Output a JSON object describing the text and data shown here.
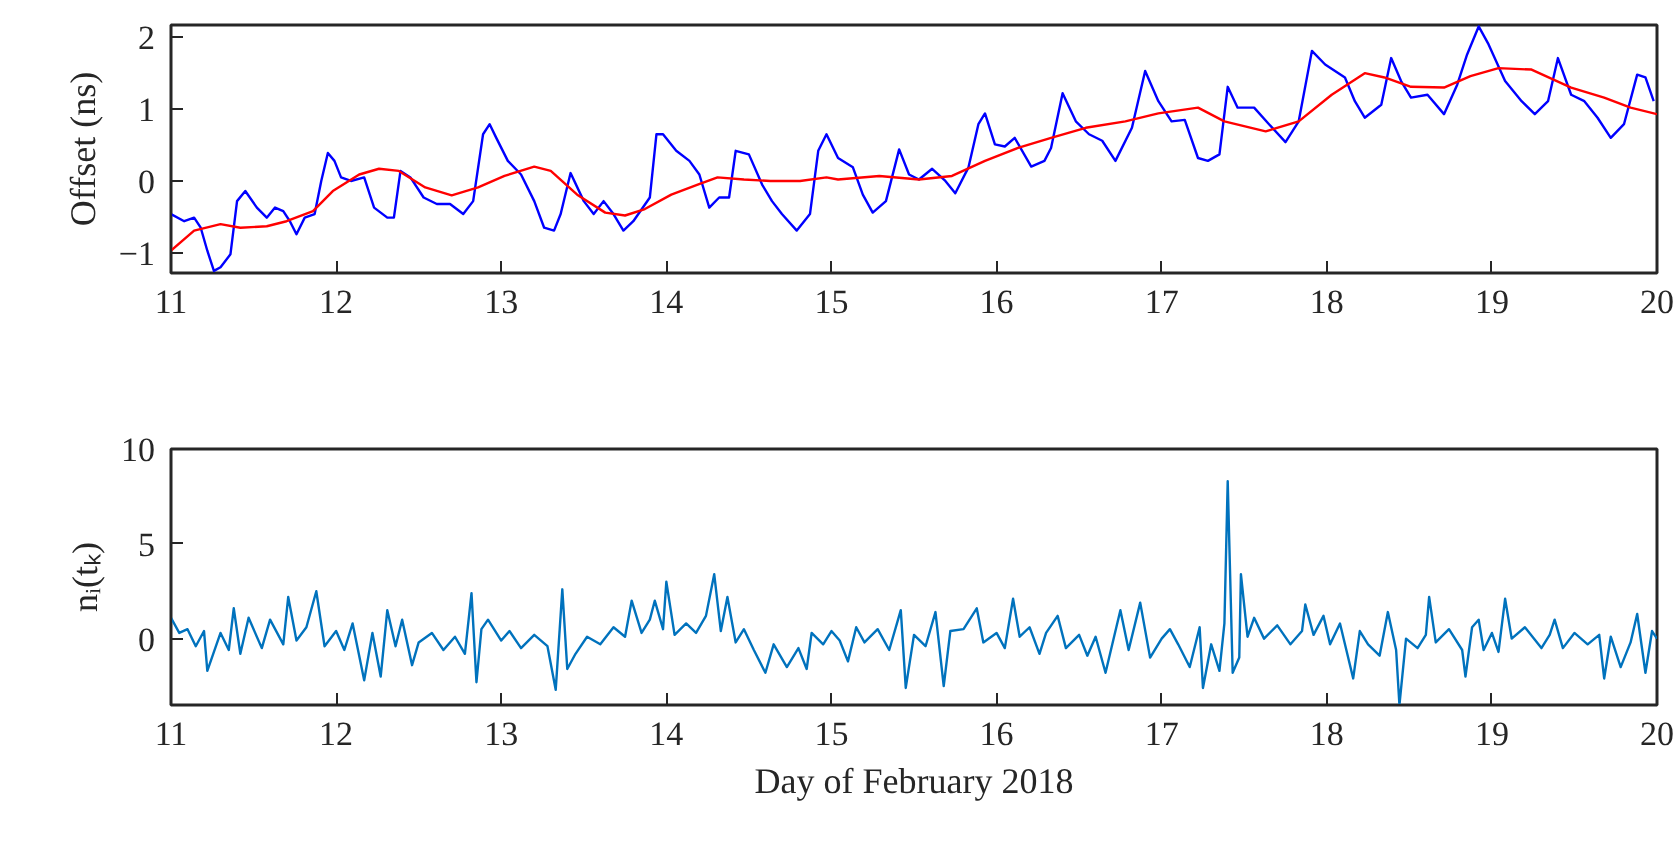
{
  "chart_data": [
    {
      "type": "line",
      "ylabel": "Offset (ns)",
      "xlim": [
        11,
        20
      ],
      "ylim": [
        -1.28,
        2.17
      ],
      "xticks": [
        11,
        12,
        13,
        14,
        15,
        16,
        17,
        18,
        19,
        20
      ],
      "yticks": [
        -1,
        0,
        1,
        2
      ],
      "grid": false,
      "line_style": "solid",
      "marker": "none",
      "series": [
        {
          "color": "#0000ff",
          "x": [
            11.0,
            11.08,
            11.14,
            11.18,
            11.22,
            11.26,
            11.3,
            11.36,
            11.4,
            11.45,
            11.52,
            11.58,
            11.63,
            11.68,
            11.72,
            11.76,
            11.81,
            11.87,
            11.91,
            11.95,
            11.99,
            12.03,
            12.09,
            12.17,
            12.23,
            12.31,
            12.35,
            12.39,
            12.45,
            12.53,
            12.61,
            12.69,
            12.77,
            12.83,
            12.89,
            12.93,
            12.97,
            13.04,
            13.12,
            13.2,
            13.26,
            13.32,
            13.36,
            13.42,
            13.5,
            13.56,
            13.62,
            13.68,
            13.74,
            13.8,
            13.9,
            13.94,
            13.98,
            14.06,
            14.14,
            14.2,
            14.26,
            14.32,
            14.38,
            14.42,
            14.5,
            14.58,
            14.64,
            14.7,
            14.79,
            14.87,
            14.92,
            14.97,
            15.04,
            15.13,
            15.19,
            15.25,
            15.33,
            15.41,
            15.47,
            15.53,
            15.61,
            15.69,
            15.75,
            15.83,
            15.89,
            15.93,
            15.99,
            16.05,
            16.11,
            16.21,
            16.29,
            16.33,
            16.4,
            16.48,
            16.56,
            16.64,
            16.72,
            16.82,
            16.9,
            16.98,
            17.06,
            17.14,
            17.22,
            17.28,
            17.35,
            17.4,
            17.46,
            17.56,
            17.65,
            17.75,
            17.83,
            17.91,
            17.99,
            18.11,
            18.17,
            18.23,
            18.33,
            18.39,
            18.45,
            18.51,
            18.61,
            18.71,
            18.79,
            18.85,
            18.92,
            18.98,
            19.08,
            19.18,
            19.26,
            19.34,
            19.4,
            19.48,
            19.56,
            19.64,
            19.72,
            19.8,
            19.88,
            19.93,
            19.98
          ],
          "values": [
            -0.46,
            -0.56,
            -0.51,
            -0.65,
            -0.97,
            -1.25,
            -1.2,
            -1.02,
            -0.28,
            -0.14,
            -0.37,
            -0.51,
            -0.37,
            -0.42,
            -0.56,
            -0.74,
            -0.51,
            -0.46,
            0.0,
            0.39,
            0.28,
            0.05,
            0.0,
            0.05,
            -0.37,
            -0.51,
            -0.51,
            0.14,
            0.05,
            -0.23,
            -0.32,
            -0.32,
            -0.46,
            -0.28,
            0.65,
            0.79,
            0.6,
            0.28,
            0.09,
            -0.28,
            -0.65,
            -0.69,
            -0.46,
            0.11,
            -0.28,
            -0.46,
            -0.28,
            -0.46,
            -0.69,
            -0.56,
            -0.23,
            0.65,
            0.65,
            0.42,
            0.28,
            0.09,
            -0.37,
            -0.23,
            -0.23,
            0.42,
            0.37,
            -0.05,
            -0.28,
            -0.46,
            -0.69,
            -0.46,
            0.42,
            0.65,
            0.32,
            0.19,
            -0.19,
            -0.44,
            -0.28,
            0.44,
            0.09,
            0.02,
            0.17,
            0.0,
            -0.17,
            0.19,
            0.79,
            0.94,
            0.51,
            0.48,
            0.6,
            0.2,
            0.28,
            0.46,
            1.22,
            0.83,
            0.65,
            0.56,
            0.28,
            0.74,
            1.53,
            1.11,
            0.83,
            0.85,
            0.32,
            0.28,
            0.37,
            1.31,
            1.02,
            1.02,
            0.79,
            0.54,
            0.83,
            1.81,
            1.62,
            1.44,
            1.11,
            0.88,
            1.06,
            1.71,
            1.39,
            1.16,
            1.2,
            0.93,
            1.34,
            1.76,
            2.15,
            1.9,
            1.39,
            1.11,
            0.93,
            1.11,
            1.71,
            1.2,
            1.11,
            0.88,
            0.6,
            0.79,
            1.48,
            1.44,
            1.11
          ]
        },
        {
          "color": "#ff0000",
          "x": [
            11.0,
            11.14,
            11.3,
            11.42,
            11.58,
            11.7,
            11.86,
            11.98,
            12.14,
            12.26,
            12.38,
            12.54,
            12.7,
            12.86,
            13.02,
            13.2,
            13.3,
            13.46,
            13.63,
            13.75,
            13.87,
            14.03,
            14.19,
            14.31,
            14.47,
            14.63,
            14.81,
            14.97,
            15.04,
            15.29,
            15.53,
            15.73,
            15.93,
            16.13,
            16.33,
            16.54,
            16.78,
            16.98,
            17.22,
            17.38,
            17.63,
            17.83,
            18.03,
            18.23,
            18.35,
            18.51,
            18.71,
            18.87,
            19.04,
            19.24,
            19.48,
            19.68,
            19.84,
            20.0
          ],
          "values": [
            -0.97,
            -0.69,
            -0.6,
            -0.65,
            -0.63,
            -0.56,
            -0.42,
            -0.14,
            0.09,
            0.17,
            0.14,
            -0.09,
            -0.2,
            -0.09,
            0.07,
            0.2,
            0.14,
            -0.19,
            -0.44,
            -0.48,
            -0.39,
            -0.19,
            -0.05,
            0.05,
            0.02,
            0.0,
            0.0,
            0.05,
            0.02,
            0.07,
            0.02,
            0.07,
            0.28,
            0.46,
            0.6,
            0.74,
            0.83,
            0.94,
            1.02,
            0.83,
            0.69,
            0.83,
            1.2,
            1.5,
            1.44,
            1.31,
            1.3,
            1.46,
            1.57,
            1.55,
            1.3,
            1.16,
            1.02,
            0.93
          ]
        }
      ]
    },
    {
      "type": "line",
      "xlabel": "Day of February 2018",
      "ylabel": "nᵢ(tₖ)",
      "xlim": [
        11,
        20
      ],
      "ylim": [
        -3.5,
        10
      ],
      "xticks": [
        11,
        12,
        13,
        14,
        15,
        16,
        17,
        18,
        19,
        20
      ],
      "yticks": [
        0,
        5,
        10
      ],
      "grid": false,
      "line_style": "solid",
      "marker": "none",
      "series": [
        {
          "color": "#0072bd",
          "x": [
            11.0,
            11.05,
            11.1,
            11.15,
            11.2,
            11.22,
            11.3,
            11.35,
            11.38,
            11.42,
            11.47,
            11.55,
            11.6,
            11.68,
            11.71,
            11.76,
            11.82,
            11.88,
            11.93,
            12.0,
            12.05,
            12.1,
            12.17,
            12.22,
            12.27,
            12.31,
            12.36,
            12.4,
            12.46,
            12.5,
            12.58,
            12.65,
            12.72,
            12.78,
            12.82,
            12.85,
            12.88,
            12.92,
            13.0,
            13.05,
            13.12,
            13.2,
            13.28,
            13.33,
            13.37,
            13.4,
            13.45,
            13.52,
            13.6,
            13.68,
            13.75,
            13.79,
            13.85,
            13.9,
            13.93,
            13.98,
            14.0,
            14.05,
            14.12,
            14.18,
            14.24,
            14.29,
            14.33,
            14.37,
            14.42,
            14.47,
            14.53,
            14.6,
            14.65,
            14.73,
            14.8,
            14.85,
            14.88,
            14.95,
            15.0,
            15.05,
            15.1,
            15.15,
            15.2,
            15.28,
            15.35,
            15.42,
            15.45,
            15.5,
            15.57,
            15.63,
            15.68,
            15.72,
            15.8,
            15.88,
            15.92,
            16.0,
            16.05,
            16.1,
            16.14,
            16.2,
            16.26,
            16.3,
            16.37,
            16.42,
            16.5,
            16.55,
            16.6,
            16.66,
            16.72,
            16.75,
            16.8,
            16.87,
            16.93,
            17.0,
            17.05,
            17.1,
            17.17,
            17.23,
            17.25,
            17.3,
            17.35,
            17.38,
            17.4,
            17.43,
            17.47,
            17.48,
            17.52,
            17.56,
            17.62,
            17.7,
            17.78,
            17.85,
            17.87,
            17.92,
            17.98,
            18.02,
            18.08,
            18.16,
            18.2,
            18.25,
            18.32,
            18.37,
            18.42,
            18.44,
            18.48,
            18.55,
            18.6,
            18.62,
            18.66,
            18.74,
            18.82,
            18.84,
            18.88,
            18.92,
            18.95,
            19.0,
            19.04,
            19.08,
            19.12,
            19.2,
            19.3,
            19.35,
            19.38,
            19.43,
            19.5,
            19.58,
            19.65,
            19.68,
            19.72,
            19.78,
            19.84,
            19.88,
            19.93,
            19.97,
            20.0
          ],
          "values": [
            1.1,
            0.3,
            0.5,
            -0.4,
            0.4,
            -1.7,
            0.3,
            -0.6,
            1.6,
            -0.8,
            1.1,
            -0.5,
            1.0,
            -0.3,
            2.2,
            -0.1,
            0.6,
            2.5,
            -0.4,
            0.4,
            -0.6,
            0.8,
            -2.2,
            0.3,
            -2.0,
            1.5,
            -0.4,
            1.0,
            -1.4,
            -0.2,
            0.3,
            -0.6,
            0.1,
            -0.8,
            2.4,
            -2.3,
            0.5,
            1.0,
            -0.1,
            0.4,
            -0.5,
            0.2,
            -0.4,
            -2.7,
            2.6,
            -1.6,
            -0.8,
            0.1,
            -0.3,
            0.6,
            0.1,
            2.0,
            0.3,
            1.0,
            2.0,
            0.5,
            3.0,
            0.2,
            0.8,
            0.3,
            1.2,
            3.4,
            0.4,
            2.2,
            -0.2,
            0.5,
            -0.6,
            -1.8,
            -0.3,
            -1.5,
            -0.5,
            -1.6,
            0.3,
            -0.3,
            0.4,
            -0.1,
            -1.2,
            0.6,
            -0.2,
            0.5,
            -0.6,
            1.5,
            -2.6,
            0.2,
            -0.4,
            1.4,
            -2.5,
            0.4,
            0.5,
            1.6,
            -0.2,
            0.3,
            -0.5,
            2.1,
            0.1,
            0.6,
            -0.8,
            0.3,
            1.2,
            -0.5,
            0.2,
            -0.9,
            0.1,
            -1.8,
            0.4,
            1.5,
            -0.6,
            1.9,
            -1.0,
            0.0,
            0.5,
            -0.3,
            -1.5,
            0.6,
            -2.6,
            -0.3,
            -1.7,
            0.8,
            8.3,
            -1.8,
            -1.0,
            3.4,
            0.1,
            1.1,
            0.0,
            0.7,
            -0.3,
            0.4,
            1.8,
            0.2,
            1.2,
            -0.3,
            0.8,
            -2.1,
            0.4,
            -0.3,
            -0.9,
            1.4,
            -0.6,
            -3.5,
            0.0,
            -0.5,
            0.2,
            2.2,
            -0.2,
            0.5,
            -0.6,
            -2.0,
            0.6,
            1.0,
            -0.6,
            0.3,
            -0.7,
            2.1,
            0.0,
            0.6,
            -0.5,
            0.2,
            1.0,
            -0.5,
            0.3,
            -0.3,
            0.2,
            -2.1,
            0.1,
            -1.5,
            -0.2,
            1.3,
            -1.8,
            0.4,
            0.0
          ]
        }
      ]
    }
  ]
}
